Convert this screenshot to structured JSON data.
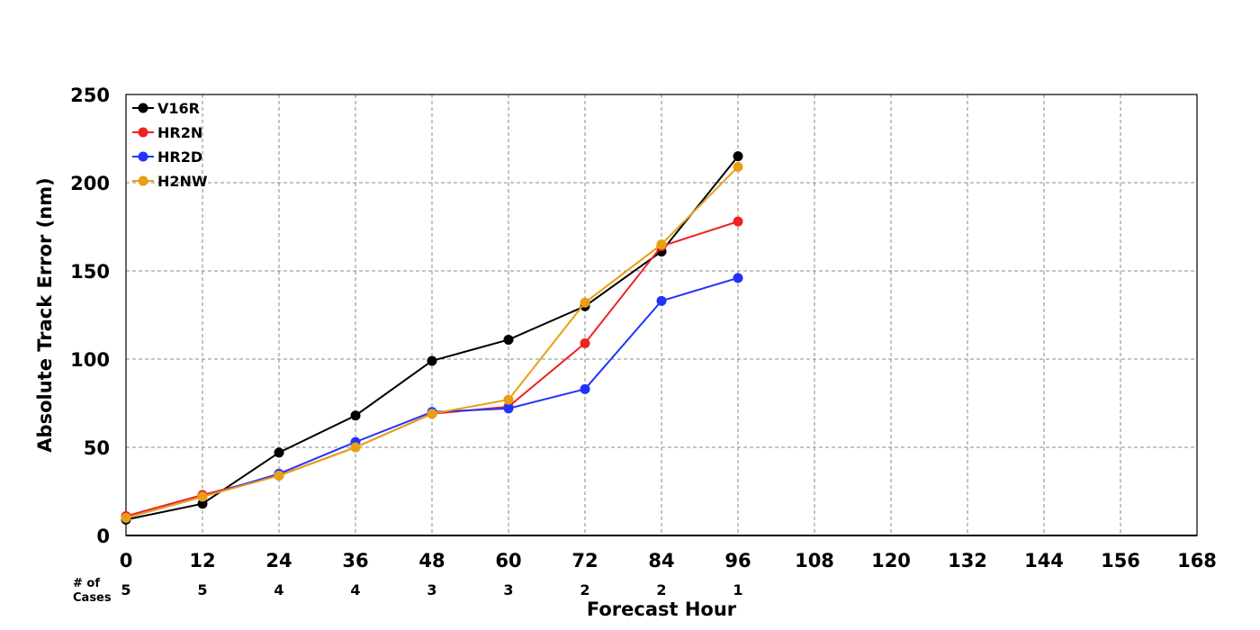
{
  "chart_data": {
    "type": "line",
    "title": "",
    "xlabel": "Forecast Hour",
    "ylabel": "Absolute Track Error (nm)",
    "xlim": [
      0,
      168
    ],
    "ylim": [
      0,
      250
    ],
    "x_ticks": [
      0,
      12,
      24,
      36,
      48,
      60,
      72,
      84,
      96,
      108,
      120,
      132,
      144,
      156,
      168
    ],
    "y_ticks": [
      0,
      50,
      100,
      150,
      200,
      250
    ],
    "grid": true,
    "legend_position": "top-left",
    "x": [
      0,
      12,
      24,
      36,
      48,
      60,
      72,
      84,
      96
    ],
    "series": [
      {
        "name": "V16R",
        "color": "#000000",
        "values": [
          9,
          18,
          47,
          68,
          99,
          111,
          130,
          161,
          215
        ]
      },
      {
        "name": "HR2N",
        "color": "#ee2222",
        "values": [
          11,
          23,
          34,
          50,
          69,
          73,
          109,
          164,
          178
        ]
      },
      {
        "name": "HR2D",
        "color": "#2233ff",
        "values": [
          10,
          22,
          35,
          53,
          70,
          72,
          83,
          133,
          146
        ]
      },
      {
        "name": "H2NW",
        "color": "#e8a010",
        "values": [
          10,
          22,
          34,
          50,
          69,
          77,
          132,
          165,
          209
        ]
      }
    ],
    "cases_label": "# of\nCases",
    "cases": [
      5,
      5,
      4,
      4,
      3,
      3,
      2,
      2,
      1
    ]
  }
}
